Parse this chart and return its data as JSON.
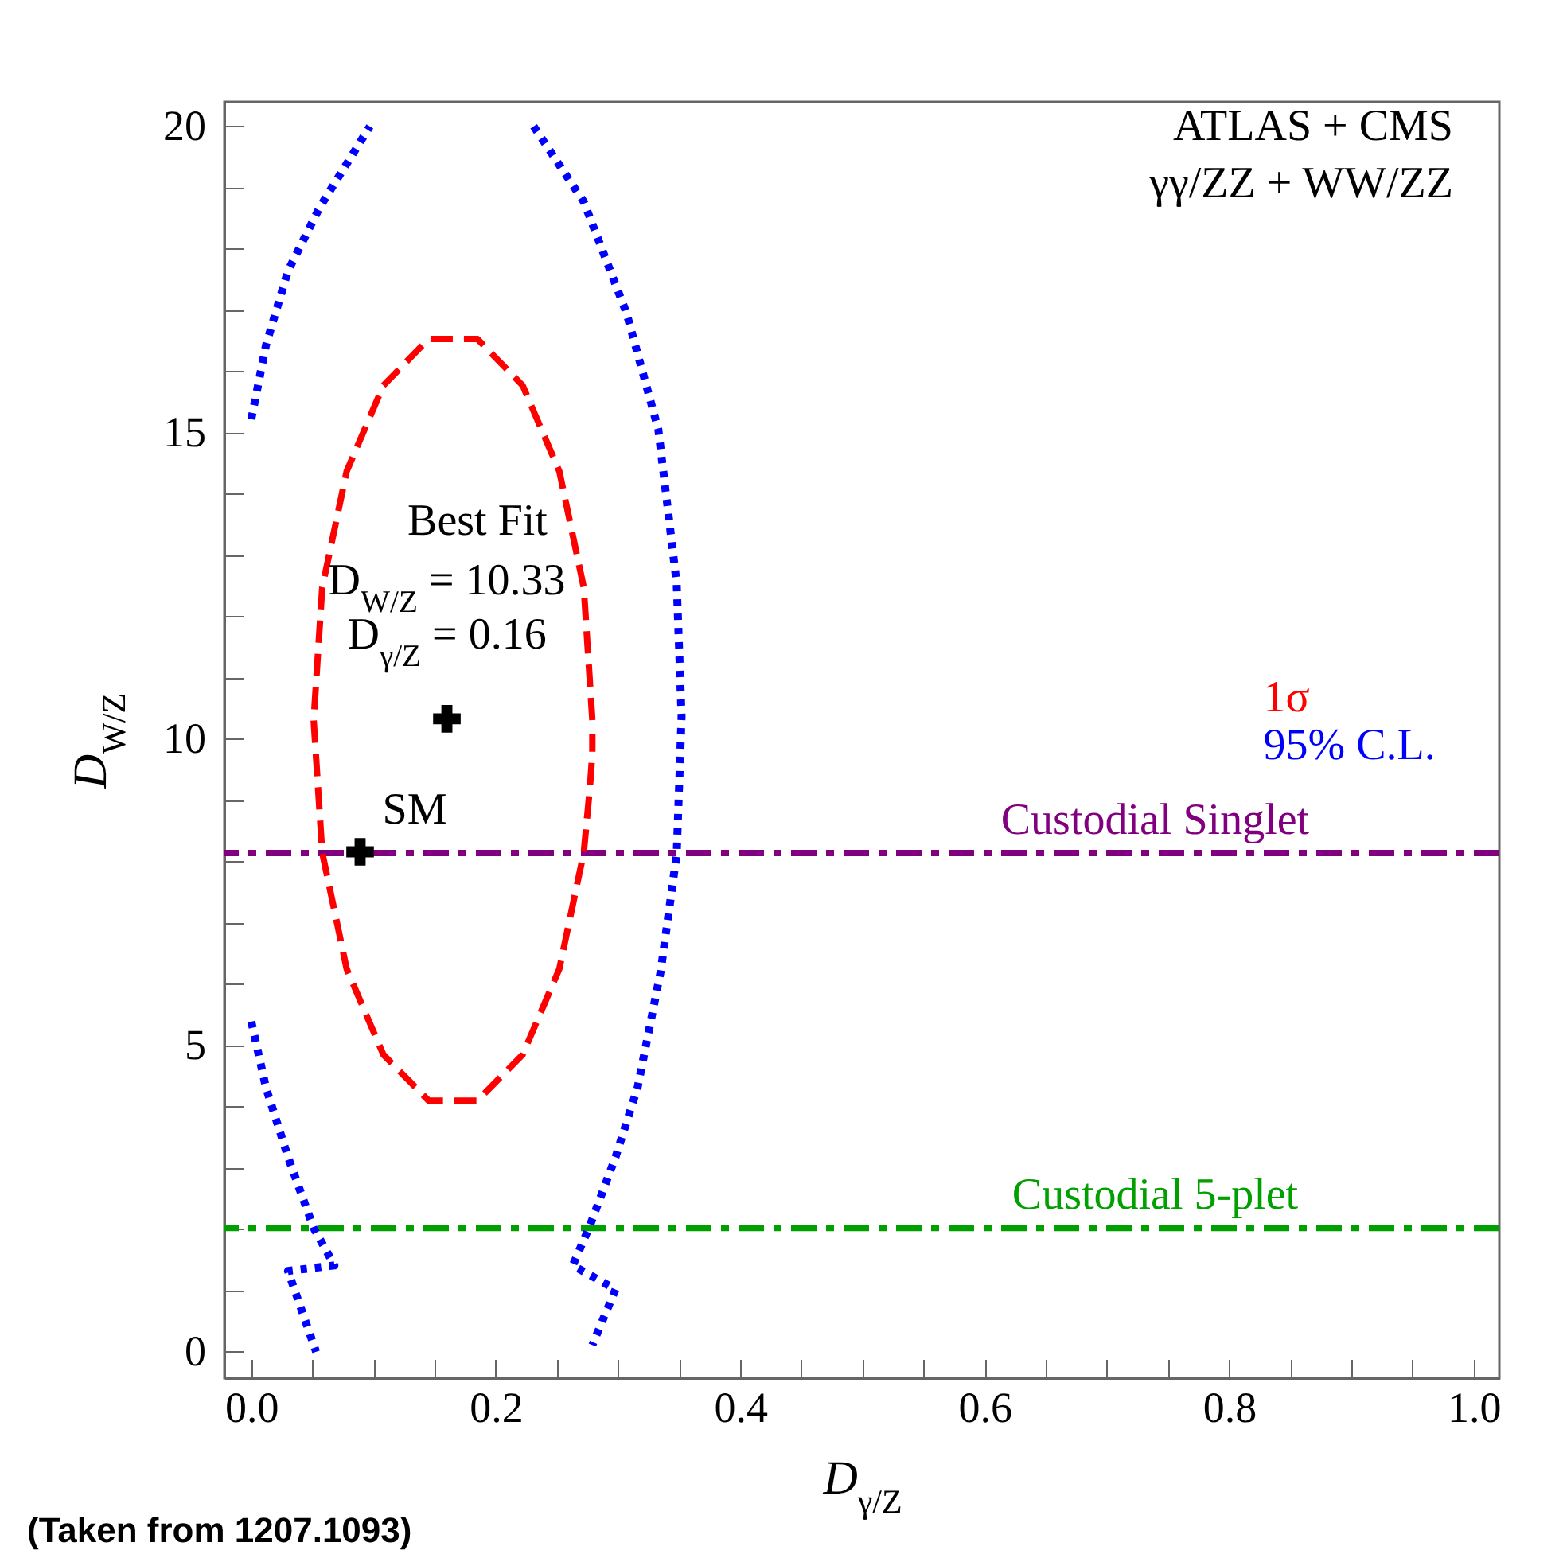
{
  "chart_data": {
    "type": "line",
    "title": "ATLAS + CMS",
    "subtitle": "γγ/ZZ + WW/ZZ",
    "xlabel": "D$_{γ/Z}$",
    "ylabel": "D$_{W/Z}$",
    "xlim": [
      -0.022,
      1.021
    ],
    "ylim": [
      -0.43,
      20.4
    ],
    "xticks": [
      {
        "value": 0,
        "label": "0.0"
      },
      {
        "value": 0.05,
        "label": null
      },
      {
        "value": 0.1,
        "label": null
      },
      {
        "value": 0.15,
        "label": null
      },
      {
        "value": 0.2,
        "label": "0.2"
      },
      {
        "value": 0.25,
        "label": null
      },
      {
        "value": 0.3,
        "label": null
      },
      {
        "value": 0.35,
        "label": null
      },
      {
        "value": 0.4,
        "label": "0.4"
      },
      {
        "value": 0.45,
        "label": null
      },
      {
        "value": 0.5,
        "label": null
      },
      {
        "value": 0.55,
        "label": null
      },
      {
        "value": 0.6,
        "label": "0.6"
      },
      {
        "value": 0.65,
        "label": null
      },
      {
        "value": 0.7,
        "label": null
      },
      {
        "value": 0.75,
        "label": null
      },
      {
        "value": 0.8,
        "label": "0.8"
      },
      {
        "value": 0.85,
        "label": null
      },
      {
        "value": 0.9,
        "label": null
      },
      {
        "value": 0.95,
        "label": null
      },
      {
        "value": 1,
        "label": "1.0"
      }
    ],
    "yticks": [
      0,
      {
        "value": 1,
        "label": null
      },
      {
        "value": 2,
        "label": null
      },
      {
        "value": 3,
        "label": null
      },
      {
        "value": 4,
        "label": null
      },
      5,
      {
        "value": 6,
        "label": null
      },
      {
        "value": 7,
        "label": null
      },
      {
        "value": 8,
        "label": null
      },
      {
        "value": 9,
        "label": null
      },
      10,
      {
        "value": 11,
        "label": null
      },
      {
        "value": 12,
        "label": null
      },
      {
        "value": 13,
        "label": null
      },
      {
        "value": 14,
        "label": null
      },
      15,
      {
        "value": 16,
        "label": null
      },
      {
        "value": 17,
        "label": null
      },
      {
        "value": 18,
        "label": null
      },
      {
        "value": 19,
        "label": null
      },
      20
    ],
    "legend": "right",
    "series": [
      {
        "name": "1σ",
        "color": "#ff0000",
        "line_style": "dashed",
        "x": [
          0.279,
          0.272,
          0.252,
          0.222,
          0.185,
          0.145,
          0.108,
          0.078,
          0.058,
          0.051,
          0.058,
          0.078,
          0.108,
          0.145,
          0.185,
          0.222,
          0.252,
          0.272,
          0.277,
          0.279,
          0.279
        ],
        "values": [
          10.31,
          12.47,
          14.37,
          15.77,
          16.53,
          16.53,
          15.77,
          14.37,
          12.47,
          10.31,
          8.15,
          6.25,
          4.85,
          4.1,
          4.1,
          4.85,
          6.25,
          8.15,
          9.21,
          9.76,
          10.09
        ]
      },
      {
        "name": "95% C.L.",
        "color": "#0000ff",
        "line_style": "dotted",
        "x": [
          0.0,
          0.012,
          0.03,
          0.056,
          0.097,
          null,
          0.231,
          0.272,
          0.307,
          0.333,
          0.348,
          0.352,
          0.348,
          0.335,
          0.316,
          0.298,
          0.277,
          0.263,
          0.298,
          0.279,
          null,
          0.0,
          0.012,
          0.03,
          0.051,
          0.068,
          0.03,
          0.053
        ],
        "values": [
          15.22,
          16.43,
          17.64,
          18.68,
          20.0,
          null,
          20.0,
          18.77,
          16.95,
          15.05,
          12.54,
          10.37,
          8.12,
          6.22,
          4.31,
          3.18,
          2.06,
          1.41,
          1.02,
          0.11,
          null,
          5.39,
          4.31,
          3.18,
          2.02,
          1.41,
          1.32,
          0.0
        ]
      },
      {
        "type": "scatter",
        "color": "#000000",
        "marker": "cross",
        "x": [
          0.16
        ],
        "values": [
          10.33
        ]
      },
      {
        "type": "scatter",
        "name": "SM",
        "color": "#000000",
        "marker": "cross",
        "x": [
          0.089
        ],
        "values": [
          8.16
        ]
      }
    ],
    "ref_lines": [
      {
        "axis": "y",
        "value": 8.14,
        "label": "Custodial Singlet",
        "color": "#800080",
        "line_style": "dashed"
      },
      {
        "axis": "y",
        "value": 2.02,
        "label": "Custodial 5-plet",
        "color": "#00a000",
        "line_style": "dashed"
      }
    ],
    "annotations": [
      "Best Fit",
      {
        "text": "D$_{W/Z}$ = 10.33",
        "x": 0.16,
        "y": 10.33
      },
      {
        "text": "D$_{γ/Z}$ = 0.16",
        "x": 0.16,
        "y": 10.33
      },
      "(Taken from 1207.1093)"
    ]
  }
}
